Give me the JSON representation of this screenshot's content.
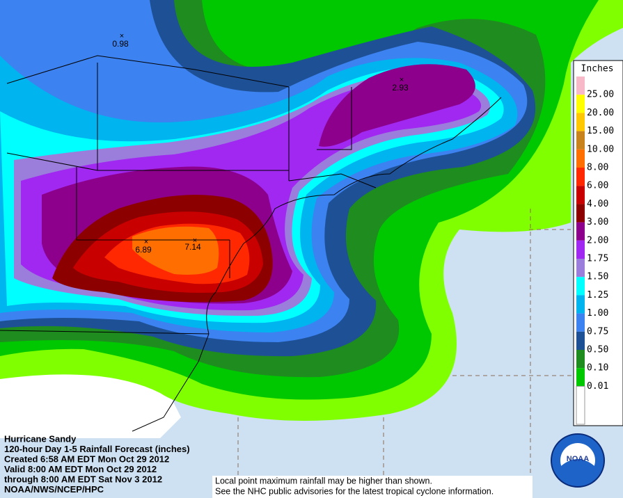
{
  "header_lines": [
    "Hurricane Sandy",
    "120-hour Day 1-5 Rainfall Forecast (inches)",
    "Created 6:58 AM EDT Mon Oct 29 2012",
    "Valid 8:00 AM EDT Mon Oct 29 2012",
    "through 8:00 AM EDT Sat Nov 3 2012",
    "NOAA/NWS/NCEP/HPC"
  ],
  "legend": {
    "title": "Inches",
    "items": [
      {
        "label": "25.00",
        "color": "#f7b8c8"
      },
      {
        "label": "20.00",
        "color": "#ffff00"
      },
      {
        "label": "15.00",
        "color": "#ffc800"
      },
      {
        "label": "10.00",
        "color": "#c8821e"
      },
      {
        "label": "8.00",
        "color": "#ff6e00"
      },
      {
        "label": "6.00",
        "color": "#ff2800"
      },
      {
        "label": "4.00",
        "color": "#c80000"
      },
      {
        "label": "3.00",
        "color": "#8c0000"
      },
      {
        "label": "2.00",
        "color": "#8c008c"
      },
      {
        "label": "1.75",
        "color": "#a028f0"
      },
      {
        "label": "1.50",
        "color": "#9b7ddc"
      },
      {
        "label": "1.25",
        "color": "#00ffff"
      },
      {
        "label": "1.00",
        "color": "#00b4f0"
      },
      {
        "label": "0.75",
        "color": "#3c82f0"
      },
      {
        "label": "0.50",
        "color": "#1e5096"
      },
      {
        "label": "0.10",
        "color": "#1e8c1e"
      },
      {
        "label": "0.01",
        "color": "#00c800"
      }
    ]
  },
  "point_maxima": [
    "0.98",
    "2.93",
    "6.89",
    "7.14"
  ],
  "footer": [
    "Local point maximum rainfall may be higher than shown.",
    "See the NHC public advisories for the latest tropical cyclone information."
  ],
  "logo": "NOAA"
}
